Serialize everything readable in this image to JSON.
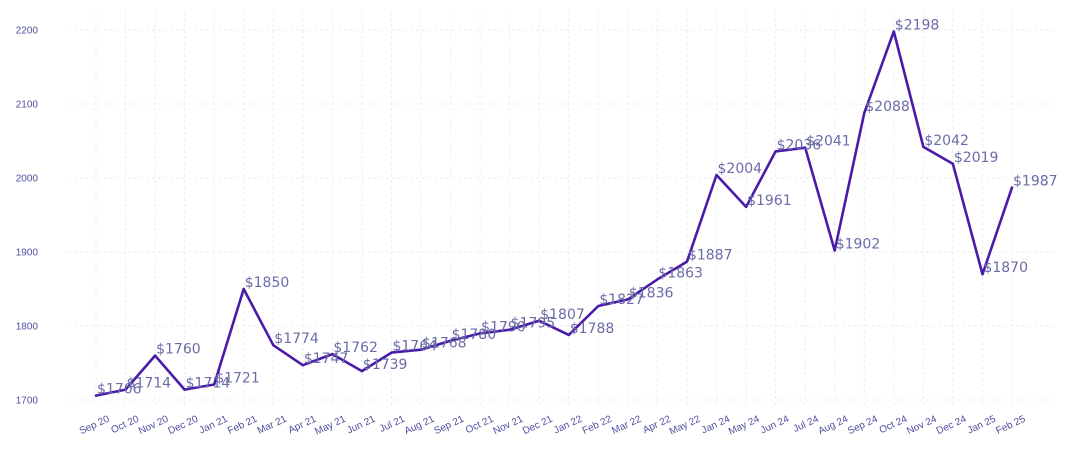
{
  "chart_data": {
    "type": "line",
    "title": "",
    "xlabel": "",
    "ylabel": "",
    "categories": [
      "Sep 20",
      "Oct 20",
      "Nov 20",
      "Dec 20",
      "Jan 21",
      "Feb 21",
      "Mar 21",
      "Apr 21",
      "May 21",
      "Jun 21",
      "Jul 21",
      "Aug 21",
      "Sep 21",
      "Oct 21",
      "Nov 21",
      "Dec 21",
      "Jan 22",
      "Feb 22",
      "Mar 22",
      "Apr 22",
      "May 22",
      "Jan 24",
      "May 24",
      "Jun 24",
      "Jul 24",
      "Aug 24",
      "Sep 24",
      "Oct 24",
      "Nov 24",
      "Dec 24",
      "Jan 25",
      "Feb 25"
    ],
    "series": [
      {
        "values": [
          1706,
          1714,
          1760,
          1714,
          1721,
          1850,
          1774,
          1747,
          1762,
          1739,
          1764,
          1768,
          1780,
          1790,
          1795,
          1807,
          1788,
          1827,
          1836,
          1863,
          1887,
          2004,
          1961,
          2036,
          2041,
          1902,
          2088,
          2198,
          2042,
          2019,
          1870,
          1987
        ],
        "labels": [
          "$1706",
          "$1714",
          "$1760",
          "$1714",
          "$1721",
          "$1850",
          "$1774",
          "$1747",
          "$1762",
          "$1739",
          "$1764",
          "$1768",
          "$1780",
          "$1790",
          "$1795",
          "$1807",
          "$1788",
          "$1827",
          "$1836",
          "$1863",
          "$1887",
          "$2004",
          "$1961",
          "$2036",
          "$2041",
          "$1902",
          "$2088",
          "$2198",
          "$2042",
          "$2019",
          "$1870",
          "$1987"
        ]
      }
    ],
    "yticks": [
      1700,
      1800,
      1900,
      2000,
      2100,
      2200
    ],
    "ylim": [
      1680,
      2225
    ],
    "grid": true,
    "legend": "none",
    "colors": {
      "line": "#4a1aa8",
      "ticks": "#4f4fa0",
      "labels": "#6b6ba8",
      "grid": "#ececf4"
    }
  }
}
